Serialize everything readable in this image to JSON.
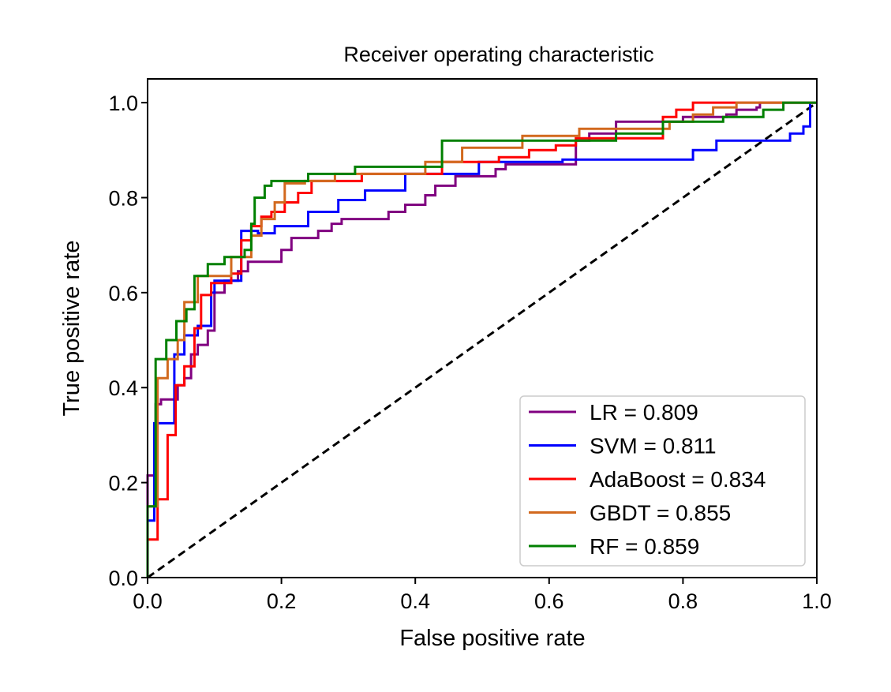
{
  "chart_data": {
    "type": "line",
    "title": "Receiver operating characteristic",
    "xlabel": "False positive rate",
    "ylabel": "True positive rate",
    "xlim": [
      0.0,
      1.0
    ],
    "ylim": [
      0.0,
      1.05
    ],
    "xticks": [
      "0.0",
      "0.2",
      "0.4",
      "0.6",
      "0.8",
      "1.0"
    ],
    "yticks": [
      "0.0",
      "0.2",
      "0.4",
      "0.6",
      "0.8",
      "1.0"
    ],
    "grid": false,
    "legend_position": "lower-right",
    "reference_line": {
      "style": "dashed",
      "color": "#000000",
      "x": [
        0,
        1
      ],
      "y": [
        0,
        1
      ]
    },
    "series": [
      {
        "name": "LR = 0.809",
        "color": "#800080",
        "points": [
          [
            0,
            0
          ],
          [
            0,
            0.215
          ],
          [
            0.012,
            0.215
          ],
          [
            0.012,
            0.365
          ],
          [
            0.02,
            0.365
          ],
          [
            0.02,
            0.375
          ],
          [
            0.045,
            0.375
          ],
          [
            0.045,
            0.405
          ],
          [
            0.055,
            0.405
          ],
          [
            0.055,
            0.42
          ],
          [
            0.065,
            0.42
          ],
          [
            0.065,
            0.47
          ],
          [
            0.075,
            0.47
          ],
          [
            0.075,
            0.49
          ],
          [
            0.09,
            0.49
          ],
          [
            0.09,
            0.52
          ],
          [
            0.1,
            0.52
          ],
          [
            0.1,
            0.6
          ],
          [
            0.115,
            0.6
          ],
          [
            0.115,
            0.625
          ],
          [
            0.135,
            0.625
          ],
          [
            0.135,
            0.645
          ],
          [
            0.15,
            0.645
          ],
          [
            0.15,
            0.665
          ],
          [
            0.2,
            0.665
          ],
          [
            0.2,
            0.69
          ],
          [
            0.215,
            0.69
          ],
          [
            0.215,
            0.715
          ],
          [
            0.255,
            0.715
          ],
          [
            0.255,
            0.73
          ],
          [
            0.275,
            0.73
          ],
          [
            0.275,
            0.745
          ],
          [
            0.29,
            0.745
          ],
          [
            0.29,
            0.755
          ],
          [
            0.36,
            0.755
          ],
          [
            0.36,
            0.77
          ],
          [
            0.385,
            0.77
          ],
          [
            0.385,
            0.785
          ],
          [
            0.415,
            0.785
          ],
          [
            0.415,
            0.805
          ],
          [
            0.43,
            0.805
          ],
          [
            0.43,
            0.825
          ],
          [
            0.46,
            0.825
          ],
          [
            0.46,
            0.845
          ],
          [
            0.52,
            0.845
          ],
          [
            0.52,
            0.86
          ],
          [
            0.535,
            0.86
          ],
          [
            0.535,
            0.87
          ],
          [
            0.64,
            0.87
          ],
          [
            0.64,
            0.92
          ],
          [
            0.66,
            0.92
          ],
          [
            0.66,
            0.935
          ],
          [
            0.7,
            0.935
          ],
          [
            0.7,
            0.96
          ],
          [
            0.8,
            0.96
          ],
          [
            0.8,
            0.97
          ],
          [
            0.865,
            0.97
          ],
          [
            0.865,
            0.975
          ],
          [
            0.88,
            0.975
          ],
          [
            0.88,
            0.985
          ],
          [
            0.91,
            0.985
          ],
          [
            0.91,
            0.99
          ],
          [
            0.915,
            0.99
          ],
          [
            0.915,
            1.0
          ],
          [
            1.0,
            1.0
          ]
        ]
      },
      {
        "name": "SVM = 0.811",
        "color": "#0000ff",
        "points": [
          [
            0,
            0
          ],
          [
            0,
            0.12
          ],
          [
            0.01,
            0.12
          ],
          [
            0.01,
            0.325
          ],
          [
            0.04,
            0.325
          ],
          [
            0.04,
            0.47
          ],
          [
            0.055,
            0.47
          ],
          [
            0.055,
            0.51
          ],
          [
            0.075,
            0.51
          ],
          [
            0.075,
            0.53
          ],
          [
            0.095,
            0.53
          ],
          [
            0.095,
            0.6
          ],
          [
            0.1,
            0.6
          ],
          [
            0.1,
            0.625
          ],
          [
            0.14,
            0.625
          ],
          [
            0.14,
            0.73
          ],
          [
            0.165,
            0.73
          ],
          [
            0.165,
            0.725
          ],
          [
            0.19,
            0.725
          ],
          [
            0.19,
            0.74
          ],
          [
            0.24,
            0.74
          ],
          [
            0.24,
            0.77
          ],
          [
            0.285,
            0.77
          ],
          [
            0.285,
            0.795
          ],
          [
            0.325,
            0.795
          ],
          [
            0.325,
            0.815
          ],
          [
            0.385,
            0.815
          ],
          [
            0.385,
            0.85
          ],
          [
            0.495,
            0.85
          ],
          [
            0.495,
            0.875
          ],
          [
            0.62,
            0.875
          ],
          [
            0.62,
            0.88
          ],
          [
            0.815,
            0.88
          ],
          [
            0.815,
            0.9
          ],
          [
            0.85,
            0.9
          ],
          [
            0.85,
            0.92
          ],
          [
            0.96,
            0.92
          ],
          [
            0.96,
            0.935
          ],
          [
            0.98,
            0.935
          ],
          [
            0.98,
            0.95
          ],
          [
            0.99,
            0.95
          ],
          [
            0.99,
            1.0
          ],
          [
            1.0,
            1.0
          ]
        ]
      },
      {
        "name": "AdaBoost = 0.834",
        "color": "#ff0000",
        "points": [
          [
            0,
            0
          ],
          [
            0,
            0.08
          ],
          [
            0.015,
            0.08
          ],
          [
            0.015,
            0.165
          ],
          [
            0.03,
            0.165
          ],
          [
            0.03,
            0.3
          ],
          [
            0.042,
            0.3
          ],
          [
            0.042,
            0.405
          ],
          [
            0.055,
            0.405
          ],
          [
            0.055,
            0.445
          ],
          [
            0.07,
            0.445
          ],
          [
            0.07,
            0.525
          ],
          [
            0.08,
            0.525
          ],
          [
            0.08,
            0.595
          ],
          [
            0.095,
            0.595
          ],
          [
            0.095,
            0.62
          ],
          [
            0.125,
            0.62
          ],
          [
            0.125,
            0.64
          ],
          [
            0.14,
            0.64
          ],
          [
            0.14,
            0.71
          ],
          [
            0.155,
            0.71
          ],
          [
            0.155,
            0.74
          ],
          [
            0.17,
            0.74
          ],
          [
            0.17,
            0.76
          ],
          [
            0.185,
            0.76
          ],
          [
            0.185,
            0.77
          ],
          [
            0.205,
            0.77
          ],
          [
            0.205,
            0.79
          ],
          [
            0.225,
            0.79
          ],
          [
            0.225,
            0.81
          ],
          [
            0.245,
            0.81
          ],
          [
            0.245,
            0.835
          ],
          [
            0.32,
            0.835
          ],
          [
            0.32,
            0.85
          ],
          [
            0.44,
            0.85
          ],
          [
            0.44,
            0.875
          ],
          [
            0.525,
            0.875
          ],
          [
            0.525,
            0.885
          ],
          [
            0.57,
            0.885
          ],
          [
            0.57,
            0.9
          ],
          [
            0.61,
            0.9
          ],
          [
            0.61,
            0.91
          ],
          [
            0.64,
            0.91
          ],
          [
            0.64,
            0.925
          ],
          [
            0.77,
            0.925
          ],
          [
            0.77,
            0.97
          ],
          [
            0.79,
            0.97
          ],
          [
            0.79,
            0.985
          ],
          [
            0.815,
            0.985
          ],
          [
            0.815,
            1.0
          ],
          [
            1.0,
            1.0
          ]
        ]
      },
      {
        "name": "GBDT = 0.855",
        "color": "#d2691e",
        "points": [
          [
            0,
            0
          ],
          [
            0,
            0.15
          ],
          [
            0.015,
            0.15
          ],
          [
            0.015,
            0.42
          ],
          [
            0.03,
            0.42
          ],
          [
            0.03,
            0.46
          ],
          [
            0.045,
            0.46
          ],
          [
            0.045,
            0.5
          ],
          [
            0.055,
            0.5
          ],
          [
            0.055,
            0.58
          ],
          [
            0.075,
            0.58
          ],
          [
            0.075,
            0.635
          ],
          [
            0.125,
            0.635
          ],
          [
            0.125,
            0.675
          ],
          [
            0.155,
            0.675
          ],
          [
            0.155,
            0.72
          ],
          [
            0.17,
            0.72
          ],
          [
            0.17,
            0.755
          ],
          [
            0.19,
            0.755
          ],
          [
            0.19,
            0.79
          ],
          [
            0.205,
            0.79
          ],
          [
            0.205,
            0.83
          ],
          [
            0.235,
            0.83
          ],
          [
            0.235,
            0.835
          ],
          [
            0.28,
            0.835
          ],
          [
            0.28,
            0.85
          ],
          [
            0.415,
            0.85
          ],
          [
            0.415,
            0.875
          ],
          [
            0.47,
            0.875
          ],
          [
            0.47,
            0.905
          ],
          [
            0.56,
            0.905
          ],
          [
            0.56,
            0.93
          ],
          [
            0.645,
            0.93
          ],
          [
            0.645,
            0.945
          ],
          [
            0.78,
            0.945
          ],
          [
            0.78,
            0.96
          ],
          [
            0.815,
            0.96
          ],
          [
            0.815,
            0.975
          ],
          [
            0.845,
            0.975
          ],
          [
            0.845,
            0.99
          ],
          [
            0.88,
            0.99
          ],
          [
            0.88,
            1.0
          ],
          [
            1.0,
            1.0
          ]
        ]
      },
      {
        "name": "RF = 0.859",
        "color": "#008000",
        "points": [
          [
            0,
            0
          ],
          [
            0,
            0.15
          ],
          [
            0.012,
            0.15
          ],
          [
            0.012,
            0.46
          ],
          [
            0.028,
            0.46
          ],
          [
            0.028,
            0.5
          ],
          [
            0.043,
            0.5
          ],
          [
            0.043,
            0.54
          ],
          [
            0.058,
            0.54
          ],
          [
            0.058,
            0.565
          ],
          [
            0.07,
            0.565
          ],
          [
            0.07,
            0.635
          ],
          [
            0.09,
            0.635
          ],
          [
            0.09,
            0.66
          ],
          [
            0.115,
            0.66
          ],
          [
            0.115,
            0.675
          ],
          [
            0.145,
            0.675
          ],
          [
            0.145,
            0.69
          ],
          [
            0.155,
            0.69
          ],
          [
            0.155,
            0.745
          ],
          [
            0.16,
            0.745
          ],
          [
            0.16,
            0.8
          ],
          [
            0.175,
            0.8
          ],
          [
            0.175,
            0.825
          ],
          [
            0.185,
            0.825
          ],
          [
            0.185,
            0.835
          ],
          [
            0.24,
            0.835
          ],
          [
            0.24,
            0.85
          ],
          [
            0.31,
            0.85
          ],
          [
            0.31,
            0.865
          ],
          [
            0.44,
            0.865
          ],
          [
            0.44,
            0.92
          ],
          [
            0.7,
            0.92
          ],
          [
            0.7,
            0.935
          ],
          [
            0.77,
            0.935
          ],
          [
            0.77,
            0.96
          ],
          [
            0.86,
            0.96
          ],
          [
            0.86,
            0.97
          ],
          [
            0.92,
            0.97
          ],
          [
            0.92,
            0.985
          ],
          [
            0.95,
            0.985
          ],
          [
            0.95,
            1.0
          ],
          [
            1.0,
            1.0
          ]
        ]
      }
    ]
  }
}
